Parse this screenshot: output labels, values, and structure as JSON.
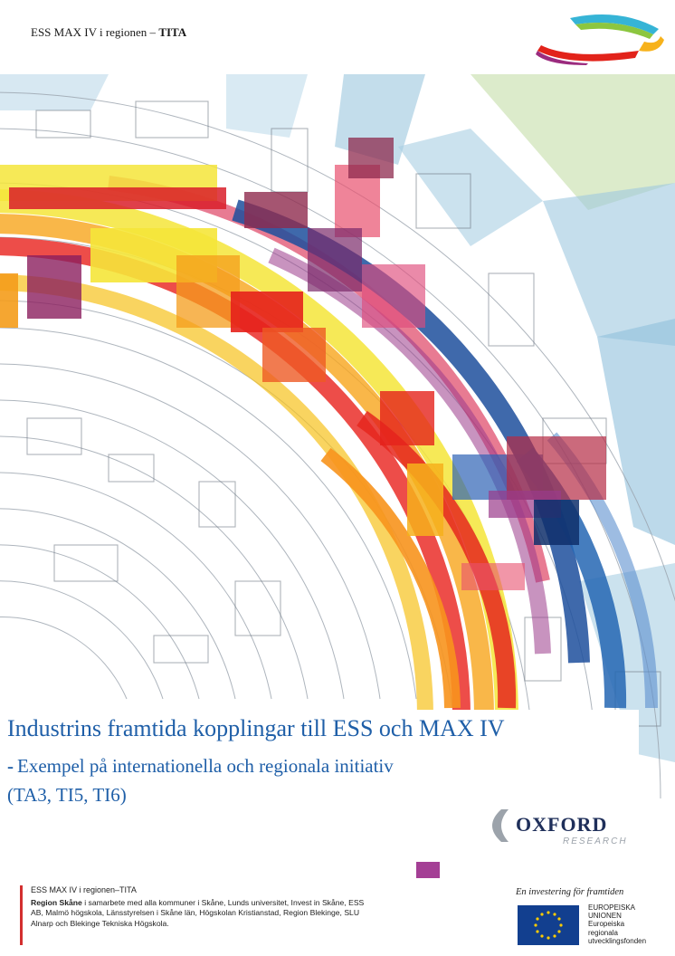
{
  "header": {
    "doc_label": "ESS MAX IV i regionen –",
    "doc_label_bold": "TITA"
  },
  "cover": {
    "title": "Industrins framtida kopplingar till ESS och MAX IV",
    "subtitle_dash": "-",
    "subtitle_line1": "Exempel på internationella och regionala initiativ",
    "subtitle_line2": "(TA3, TI5, TI6)"
  },
  "oxford_logo": {
    "name": "OXFORD",
    "sub": "RESEARCH"
  },
  "footer": {
    "project": "ESS MAX IV i regionen–TITA",
    "partner_bold": "Region Skåne",
    "partners_text": " i samarbete med alla kommuner i Skåne, Lunds universitet, Invest in Skåne, ESS AB, Malmö högskola, Länsstyrelsen i Skåne län, Högskolan Kristianstad, Region Blekinge, SLU Alnarp och Blekinge Tekniska Högskola.",
    "investment_tagline": "En investering för framtiden",
    "eu_line1": "EUROPEISKA",
    "eu_line2": "UNIONEN",
    "eu_line3": "Europeiska",
    "eu_line4": "regionala",
    "eu_line5": "utvecklingsfonden"
  },
  "colors": {
    "title_blue": "#1f5fa8",
    "footer_red": "#d32f2f",
    "eu_blue": "#123f8f",
    "eu_star": "#ffcc00"
  }
}
